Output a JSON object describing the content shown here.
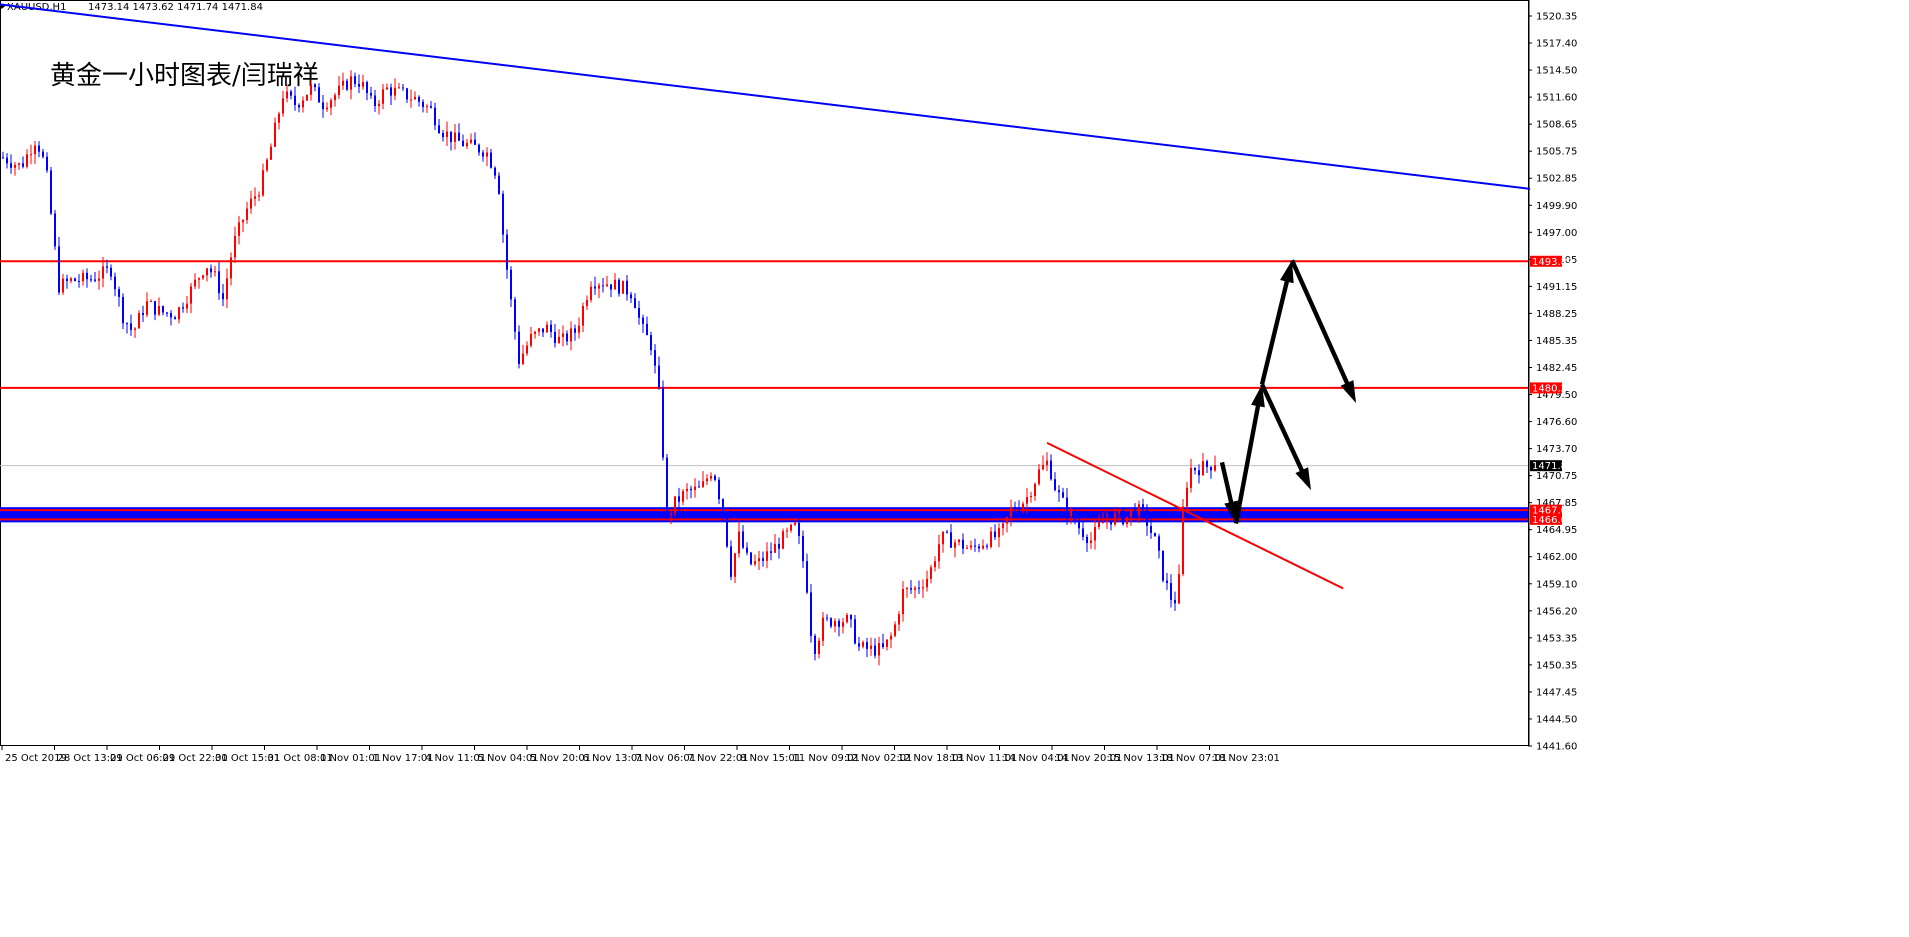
{
  "header": {
    "symbol": "XAUUSD,H1",
    "ohlc": "1473.14 1473.62 1471.74 1471.84"
  },
  "chart_data": {
    "type": "candlestick",
    "title": "黄金一小时图表/闫瑞祥",
    "ylim": [
      1441.6,
      1522.0
    ],
    "y_ticks": [
      "1520.35",
      "1517.40",
      "1514.50",
      "1511.60",
      "1508.65",
      "1505.75",
      "1502.85",
      "1499.90",
      "1497.00",
      "1494.05",
      "1491.15",
      "1488.25",
      "1485.35",
      "1482.45",
      "1479.50",
      "1476.60",
      "1473.70",
      "1470.75",
      "1467.85",
      "1464.95",
      "1462.00",
      "1459.10",
      "1456.20",
      "1453.35",
      "1450.35",
      "1447.45",
      "1444.50",
      "1441.60"
    ],
    "x_ticks": [
      "25 Oct 2019",
      "28 Oct 13:01",
      "29 Oct 06:01",
      "29 Oct 22:01",
      "30 Oct 15:01",
      "31 Oct 08:01",
      "1 Nov 01:01",
      "1 Nov 17:01",
      "4 Nov 11:01",
      "5 Nov 04:01",
      "5 Nov 20:01",
      "6 Nov 13:01",
      "7 Nov 06:01",
      "7 Nov 22:01",
      "8 Nov 15:01",
      "11 Nov 09:01",
      "12 Nov 02:01",
      "12 Nov 18:01",
      "13 Nov 11:01",
      "14 Nov 04:01",
      "14 Nov 20:01",
      "15 Nov 13:01",
      "18 Nov 07:01",
      "18 Nov 23:01"
    ],
    "horizontal_levels": [
      {
        "label": "1493.89",
        "value": 1493.89,
        "color": "#ff0000"
      },
      {
        "label": "1480.23",
        "value": 1480.23,
        "color": "#ff0000"
      },
      {
        "label": "1467.04",
        "value": 1467.04,
        "color": "#ff0000"
      },
      {
        "label": "1466.05",
        "value": 1466.05,
        "color": "#ff0000"
      }
    ],
    "current_price": {
      "label": "1471.84",
      "value": 1471.84,
      "color": "#000000"
    },
    "support_zone": {
      "low": 1466.05,
      "high": 1467.04,
      "color": "#0000ff"
    },
    "trendlines": [
      {
        "name": "blue-resistance",
        "color": "#0000ff",
        "points": [
          [
            0,
            1521.6
          ],
          [
            1530,
            1501.7
          ]
        ]
      },
      {
        "name": "red-descending",
        "color": "#ff0000",
        "points": [
          [
            1047,
            1474.3
          ],
          [
            1343,
            1458.6
          ]
        ]
      }
    ],
    "projection_arrows": [
      {
        "from": [
          1222,
          1472.2
        ],
        "to": [
          1236,
          1465.6
        ]
      },
      {
        "from": [
          1236,
          1465.6
        ],
        "to": [
          1262,
          1480.6
        ]
      },
      {
        "from": [
          1262,
          1480.6
        ],
        "to": [
          1311,
          1469.2
        ]
      },
      {
        "from": [
          1262,
          1480.6
        ],
        "to": [
          1292,
          1494.0
        ]
      },
      {
        "from": [
          1292,
          1494.0
        ],
        "to": [
          1356,
          1478.6
        ]
      }
    ],
    "price_path": [
      [
        0,
        1505.2
      ],
      [
        20,
        1504.1
      ],
      [
        35,
        1507.2
      ],
      [
        45,
        1503.9
      ],
      [
        52,
        1497.0
      ],
      [
        58,
        1491.2
      ],
      [
        70,
        1491.8
      ],
      [
        90,
        1492.0
      ],
      [
        110,
        1493.0
      ],
      [
        122,
        1488.0
      ],
      [
        132,
        1486.2
      ],
      [
        145,
        1489.4
      ],
      [
        160,
        1488.4
      ],
      [
        175,
        1488.2
      ],
      [
        190,
        1490.8
      ],
      [
        205,
        1493.6
      ],
      [
        215,
        1492.0
      ],
      [
        222,
        1489.8
      ],
      [
        232,
        1495.6
      ],
      [
        245,
        1499.3
      ],
      [
        260,
        1502.1
      ],
      [
        270,
        1506.2
      ],
      [
        282,
        1511.9
      ],
      [
        295,
        1510.8
      ],
      [
        310,
        1512.6
      ],
      [
        322,
        1510.9
      ],
      [
        335,
        1511.9
      ],
      [
        350,
        1513.5
      ],
      [
        360,
        1513.2
      ],
      [
        372,
        1510.6
      ],
      [
        385,
        1512.5
      ],
      [
        400,
        1512.0
      ],
      [
        415,
        1511.4
      ],
      [
        430,
        1510.2
      ],
      [
        440,
        1508.1
      ],
      [
        455,
        1506.9
      ],
      [
        470,
        1506.3
      ],
      [
        485,
        1505.8
      ],
      [
        497,
        1503.0
      ],
      [
        503,
        1495.7
      ],
      [
        510,
        1489.5
      ],
      [
        518,
        1483.2
      ],
      [
        530,
        1485.6
      ],
      [
        545,
        1486.8
      ],
      [
        560,
        1485.2
      ],
      [
        575,
        1486.4
      ],
      [
        590,
        1491.8
      ],
      [
        605,
        1491.6
      ],
      [
        620,
        1491.1
      ],
      [
        632,
        1490.4
      ],
      [
        640,
        1486.8
      ],
      [
        650,
        1484.9
      ],
      [
        660,
        1478.2
      ],
      [
        665,
        1465.8
      ],
      [
        672,
        1467.6
      ],
      [
        685,
        1469.0
      ],
      [
        700,
        1469.3
      ],
      [
        712,
        1471.7
      ],
      [
        722,
        1466.8
      ],
      [
        730,
        1460.5
      ],
      [
        738,
        1464.2
      ],
      [
        748,
        1461.2
      ],
      [
        758,
        1461.4
      ],
      [
        770,
        1462.6
      ],
      [
        782,
        1464.0
      ],
      [
        795,
        1465.3
      ],
      [
        805,
        1460.0
      ],
      [
        812,
        1451.7
      ],
      [
        822,
        1454.8
      ],
      [
        835,
        1455.3
      ],
      [
        848,
        1455.1
      ],
      [
        858,
        1452.2
      ],
      [
        870,
        1452.0
      ],
      [
        882,
        1452.0
      ],
      [
        892,
        1453.7
      ],
      [
        902,
        1458.2
      ],
      [
        915,
        1458.6
      ],
      [
        928,
        1460.0
      ],
      [
        940,
        1464.1
      ],
      [
        955,
        1463.6
      ],
      [
        970,
        1462.8
      ],
      [
        985,
        1463.8
      ],
      [
        1000,
        1464.4
      ],
      [
        1010,
        1467.1
      ],
      [
        1025,
        1468.2
      ],
      [
        1038,
        1471.2
      ],
      [
        1047,
        1472.3
      ],
      [
        1055,
        1469.2
      ],
      [
        1065,
        1467.2
      ],
      [
        1078,
        1465.2
      ],
      [
        1090,
        1463.8
      ],
      [
        1100,
        1465.6
      ],
      [
        1112,
        1466.3
      ],
      [
        1125,
        1466.2
      ],
      [
        1135,
        1467.3
      ],
      [
        1145,
        1466.0
      ],
      [
        1155,
        1463.4
      ],
      [
        1163,
        1459.6
      ],
      [
        1170,
        1457.6
      ],
      [
        1177,
        1457.2
      ],
      [
        1181,
        1466.3
      ],
      [
        1188,
        1471.5
      ],
      [
        1198,
        1471.6
      ],
      [
        1208,
        1471.8
      ],
      [
        1214,
        1472.3
      ]
    ]
  }
}
